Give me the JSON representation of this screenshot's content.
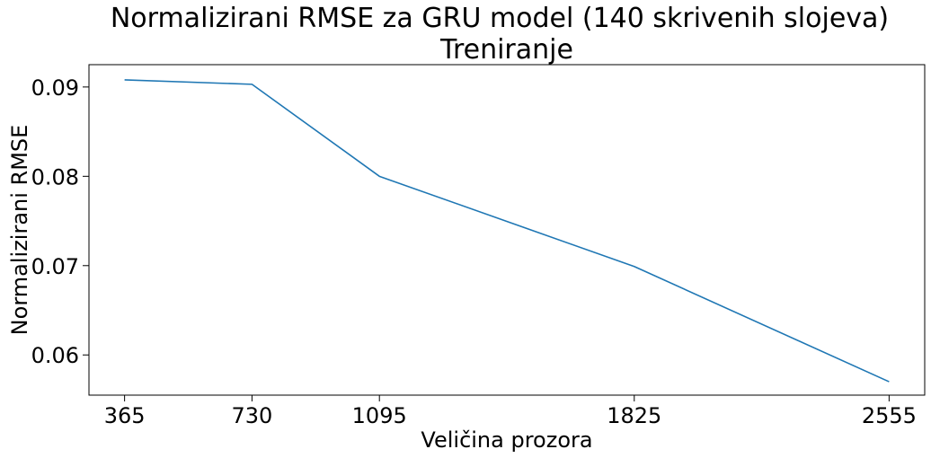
{
  "chart_data": {
    "type": "line",
    "title_line1": "Normalizirani RMSE za GRU model (140 skrivenih slojeva)",
    "title_line2": "Treniranje",
    "xlabel": "Veličina prozora",
    "ylabel": "Normalizirani RMSE",
    "x": [
      365,
      730,
      1095,
      1825,
      2555
    ],
    "x_tick_labels": [
      "365",
      "730",
      "1095",
      "1825",
      "2555"
    ],
    "xlim": [
      263,
      2657
    ],
    "ylim": [
      0.0555,
      0.0925
    ],
    "y_ticks": [
      0.06,
      0.07,
      0.08,
      0.09
    ],
    "y_tick_labels": [
      "0.06",
      "0.07",
      "0.08",
      "0.09"
    ],
    "grid": false,
    "series": [
      {
        "values": [
          0.0908,
          0.0903,
          0.08,
          0.0699,
          0.057
        ],
        "color": "#1f77b4"
      }
    ]
  }
}
